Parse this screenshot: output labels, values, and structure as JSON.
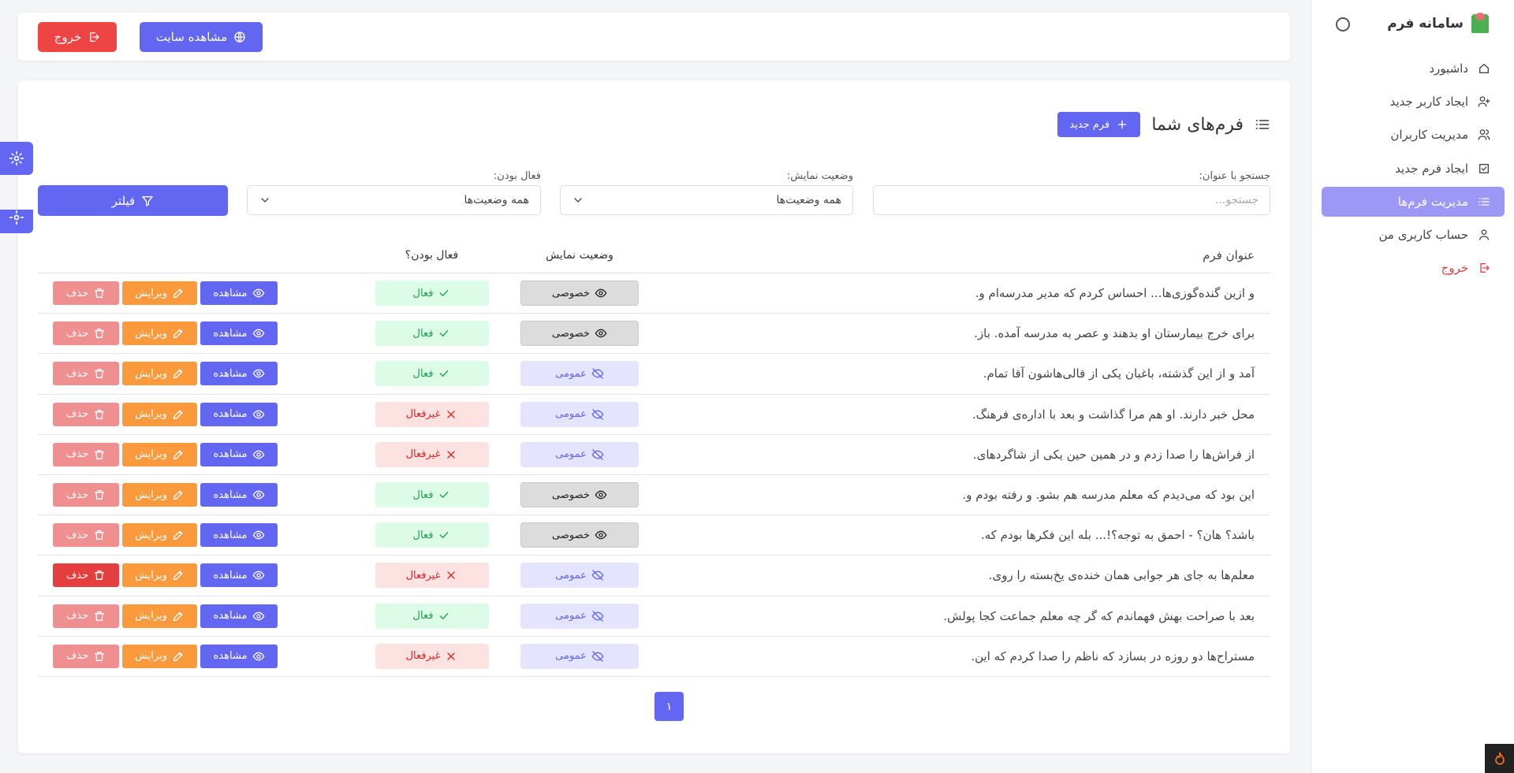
{
  "sidebar": {
    "title": "سامانه فرم",
    "menu": [
      {
        "label": "داشبورد"
      },
      {
        "label": "ایجاد کاربر جدید"
      },
      {
        "label": "مدیریت کاربران"
      },
      {
        "label": "ایجاد فرم جدید"
      },
      {
        "label": "مدیریت فرم‌ها"
      },
      {
        "label": "حساب کاربری من"
      },
      {
        "label": "خروج"
      }
    ]
  },
  "topbar": {
    "view_site": "مشاهده سایت",
    "logout": "خروج"
  },
  "forms": {
    "title": "فرم‌های شما",
    "new_button": "فرم جدید",
    "filters": {
      "search_label": "جستجو با عنوان:",
      "search_placeholder": "جستجو...",
      "visibility_label": "وضعیت نمایش:",
      "visibility_value": "همه وضعیت‌ها",
      "active_label": "فعال بودن:",
      "active_value": "همه وضعیت‌ها",
      "filter_button": "فیلتر"
    },
    "table": {
      "headers": [
        "عنوان فرم",
        "وضعیت نمایش",
        "فعال بودن؟"
      ],
      "actions": {
        "view": "مشاهده",
        "edit": "ویرایش",
        "delete": "حذف"
      },
      "rows": [
        {
          "title": "و ازین گنده‌گوزی‌ها... احساس کردم که مدیر مدرسه‌ام و.",
          "visibility": "خصوصی",
          "active": "فعال"
        },
        {
          "title": "برای خرج بیمارستان او بدهند و عصر به مدرسه آمده. باز.",
          "visibility": "خصوصی",
          "active": "فعال"
        },
        {
          "title": "آمد و از این گذشته، باغبان یکی از قالی‌هاشون آقا تمام.",
          "visibility": "عمومی",
          "active": "فعال"
        },
        {
          "title": "محل خبر دارند. او هم مرا گذاشت و بعد با اداره‌ی فرهنگ.",
          "visibility": "عمومی",
          "active": "غیرفعال"
        },
        {
          "title": "از فراش‌ها را صدا زدم و در همین حین یکی از شاگردهای.",
          "visibility": "عمومی",
          "active": "غیرفعال"
        },
        {
          "title": "این بود که می‌دیدم که معلم مدرسه هم بشو. و رفته بودم و.",
          "visibility": "خصوصی",
          "active": "فعال"
        },
        {
          "title": "باشد؟ هان؟ - احمق به توجه؟!... بله این فکرها بودم که.",
          "visibility": "خصوصی",
          "active": "فعال"
        },
        {
          "title": "معلم‌ها به جای هر جوابی همان خنده‌ی یخ‌بسته را روی.",
          "visibility": "عمومی",
          "active": "غیرفعال"
        },
        {
          "title": "بعد با صراحت بهش فهماندم که گر چه معلم جماعت کجا پولش.",
          "visibility": "عمومی",
          "active": "فعال"
        },
        {
          "title": "مستراح‌ها دو روزه در بسازد که ناظم را صدا کردم که این.",
          "visibility": "عمومی",
          "active": "غیرفعال"
        }
      ]
    },
    "pagination": [
      "۱"
    ]
  }
}
